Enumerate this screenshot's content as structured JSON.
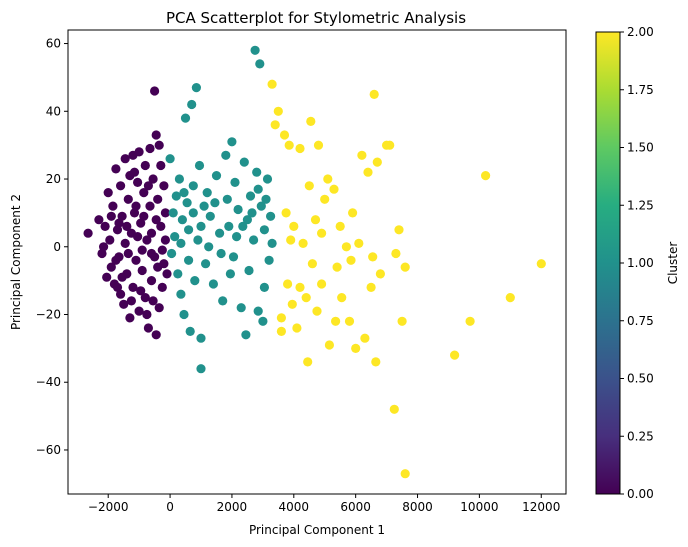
{
  "chart_data": {
    "type": "scatter",
    "title": "PCA Scatterplot for Stylometric Analysis",
    "xlabel": "Principal Component 1",
    "ylabel": "Principal Component 2",
    "xlim": [
      -3300,
      12800
    ],
    "ylim": [
      -73,
      64
    ],
    "xticks": [
      -2000,
      0,
      2000,
      4000,
      6000,
      8000,
      10000,
      12000
    ],
    "xtick_labels": [
      "−2000",
      "0",
      "2000",
      "4000",
      "6000",
      "8000",
      "10000",
      "12000"
    ],
    "yticks": [
      -60,
      -40,
      -20,
      0,
      20,
      40,
      60
    ],
    "ytick_labels": [
      "−60",
      "−40",
      "−20",
      "0",
      "20",
      "40",
      "60"
    ],
    "grid": false,
    "colorbar": {
      "label": "Cluster",
      "min": 0.0,
      "max": 2.0,
      "colormap": "viridis",
      "ticks": [
        0.0,
        0.25,
        0.5,
        0.75,
        1.0,
        1.25,
        1.5,
        1.75,
        2.0
      ],
      "tick_labels": [
        "0.00",
        "0.25",
        "0.50",
        "0.75",
        "1.00",
        "1.25",
        "1.50",
        "1.75",
        "2.00"
      ]
    },
    "cluster_colors": [
      "#440154",
      "#21918c",
      "#fde725"
    ],
    "series": [
      {
        "cluster": 0,
        "points": [
          [
            -2650,
            4
          ],
          [
            -2300,
            8
          ],
          [
            -2200,
            -2
          ],
          [
            -2100,
            6
          ],
          [
            -2050,
            -9
          ],
          [
            -2000,
            16
          ],
          [
            -1950,
            2
          ],
          [
            -1900,
            -6
          ],
          [
            -1850,
            12
          ],
          [
            -1800,
            -11
          ],
          [
            -1750,
            23
          ],
          [
            -1700,
            5
          ],
          [
            -1650,
            -3
          ],
          [
            -1600,
            18
          ],
          [
            -1600,
            -14
          ],
          [
            -1550,
            9
          ],
          [
            -1500,
            -17
          ],
          [
            -1450,
            26
          ],
          [
            -1450,
            1
          ],
          [
            -1400,
            -8
          ],
          [
            -1350,
            14
          ],
          [
            -1300,
            -21
          ],
          [
            -1300,
            21
          ],
          [
            -1250,
            4
          ],
          [
            -1200,
            27
          ],
          [
            -1200,
            -12
          ],
          [
            -1150,
            10
          ],
          [
            -1100,
            -4
          ],
          [
            -1050,
            19
          ],
          [
            -1000,
            -19
          ],
          [
            -1000,
            28
          ],
          [
            -950,
            7
          ],
          [
            -900,
            -7
          ],
          [
            -850,
            16
          ],
          [
            -800,
            -15
          ],
          [
            -800,
            24
          ],
          [
            -750,
            2
          ],
          [
            -700,
            -24
          ],
          [
            -650,
            12
          ],
          [
            -650,
            29
          ],
          [
            -600,
            -10
          ],
          [
            -550,
            20
          ],
          [
            -500,
            46
          ],
          [
            -500,
            -3
          ],
          [
            -450,
            33
          ],
          [
            -450,
            -26
          ],
          [
            -400,
            14
          ],
          [
            -350,
            -18
          ],
          [
            -350,
            30
          ],
          [
            -300,
            6
          ],
          [
            -300,
            24
          ],
          [
            -250,
            -12
          ],
          [
            -200,
            18
          ],
          [
            -200,
            -5
          ],
          [
            -150,
            2
          ],
          [
            -150,
            10
          ],
          [
            -100,
            -8
          ],
          [
            -1900,
            9
          ],
          [
            -1750,
            -4
          ],
          [
            -1650,
            7
          ],
          [
            -1550,
            -9
          ],
          [
            -1350,
            -2
          ],
          [
            -1250,
            -16
          ],
          [
            -1150,
            22
          ],
          [
            -1050,
            3
          ],
          [
            -950,
            -13
          ],
          [
            -850,
            9
          ],
          [
            -750,
            -20
          ],
          [
            -700,
            18
          ],
          [
            -600,
            4
          ],
          [
            -550,
            -16
          ],
          [
            -450,
            8
          ],
          [
            -400,
            -6
          ],
          [
            -250,
            -1
          ],
          [
            -2150,
            0
          ],
          [
            -1700,
            -12
          ],
          [
            -1400,
            6
          ],
          [
            -1100,
            12
          ],
          [
            -900,
            -1
          ],
          [
            -600,
            -2
          ]
        ]
      },
      {
        "cluster": 1,
        "points": [
          [
            0,
            26
          ],
          [
            50,
            -2
          ],
          [
            100,
            10
          ],
          [
            150,
            3
          ],
          [
            200,
            15
          ],
          [
            250,
            -8
          ],
          [
            300,
            20
          ],
          [
            350,
            -14
          ],
          [
            400,
            8
          ],
          [
            450,
            -20
          ],
          [
            500,
            38
          ],
          [
            550,
            13
          ],
          [
            600,
            5
          ],
          [
            650,
            -25
          ],
          [
            700,
            42
          ],
          [
            750,
            18
          ],
          [
            800,
            -10
          ],
          [
            850,
            47
          ],
          [
            900,
            2
          ],
          [
            950,
            24
          ],
          [
            1000,
            -27
          ],
          [
            1000,
            -36
          ],
          [
            1100,
            12
          ],
          [
            1150,
            -5
          ],
          [
            1200,
            16
          ],
          [
            1300,
            9
          ],
          [
            1400,
            -11
          ],
          [
            1500,
            21
          ],
          [
            1600,
            4
          ],
          [
            1700,
            -16
          ],
          [
            1800,
            27
          ],
          [
            1850,
            14
          ],
          [
            1900,
            6
          ],
          [
            2000,
            31
          ],
          [
            2050,
            -3
          ],
          [
            2100,
            19
          ],
          [
            2200,
            11
          ],
          [
            2300,
            -18
          ],
          [
            2400,
            25
          ],
          [
            2450,
            -26
          ],
          [
            2500,
            8
          ],
          [
            2550,
            -7
          ],
          [
            2600,
            15
          ],
          [
            2700,
            2
          ],
          [
            2750,
            58
          ],
          [
            2800,
            22
          ],
          [
            2850,
            -19
          ],
          [
            2900,
            54
          ],
          [
            2950,
            12
          ],
          [
            3000,
            -22
          ],
          [
            3050,
            5
          ],
          [
            3100,
            14
          ],
          [
            3150,
            20
          ],
          [
            3200,
            -4
          ],
          [
            3250,
            9
          ],
          [
            3300,
            1
          ],
          [
            350,
            1
          ],
          [
            450,
            16
          ],
          [
            600,
            -4
          ],
          [
            750,
            10
          ],
          [
            1000,
            6
          ],
          [
            1250,
            0
          ],
          [
            1450,
            13
          ],
          [
            1650,
            -2
          ],
          [
            1950,
            -8
          ],
          [
            2150,
            3
          ],
          [
            2350,
            6
          ],
          [
            2650,
            10
          ],
          [
            2850,
            17
          ],
          [
            3050,
            -12
          ]
        ]
      },
      {
        "cluster": 2,
        "points": [
          [
            3300,
            48
          ],
          [
            3400,
            36
          ],
          [
            3500,
            40
          ],
          [
            3600,
            -21
          ],
          [
            3700,
            33
          ],
          [
            3750,
            10
          ],
          [
            3800,
            -11
          ],
          [
            3850,
            30
          ],
          [
            3900,
            2
          ],
          [
            3950,
            -17
          ],
          [
            4000,
            6
          ],
          [
            4100,
            -24
          ],
          [
            4200,
            29
          ],
          [
            4300,
            1
          ],
          [
            4400,
            -15
          ],
          [
            4500,
            18
          ],
          [
            4550,
            37
          ],
          [
            4600,
            -5
          ],
          [
            4700,
            8
          ],
          [
            4750,
            -19
          ],
          [
            4800,
            30
          ],
          [
            4900,
            4
          ],
          [
            5000,
            14
          ],
          [
            5100,
            20
          ],
          [
            5150,
            -29
          ],
          [
            5300,
            17
          ],
          [
            5400,
            -6
          ],
          [
            5500,
            6
          ],
          [
            5550,
            -15
          ],
          [
            5700,
            0
          ],
          [
            5800,
            -22
          ],
          [
            5900,
            10
          ],
          [
            6000,
            -30
          ],
          [
            6100,
            1
          ],
          [
            6200,
            27
          ],
          [
            6300,
            -27
          ],
          [
            6400,
            22
          ],
          [
            6500,
            -12
          ],
          [
            6600,
            45
          ],
          [
            6650,
            -34
          ],
          [
            6700,
            25
          ],
          [
            6800,
            -8
          ],
          [
            7000,
            30
          ],
          [
            7100,
            30
          ],
          [
            7250,
            -48
          ],
          [
            7400,
            5
          ],
          [
            7500,
            -22
          ],
          [
            7600,
            -67
          ],
          [
            7600,
            -6
          ],
          [
            9200,
            -32
          ],
          [
            9700,
            -22
          ],
          [
            10200,
            21
          ],
          [
            11000,
            -15
          ],
          [
            12000,
            -5
          ],
          [
            3600,
            -25
          ],
          [
            4200,
            -12
          ],
          [
            4450,
            -34
          ],
          [
            4900,
            -11
          ],
          [
            5350,
            -22
          ],
          [
            5850,
            -4
          ],
          [
            6550,
            -3
          ],
          [
            7300,
            -2
          ]
        ]
      }
    ]
  }
}
